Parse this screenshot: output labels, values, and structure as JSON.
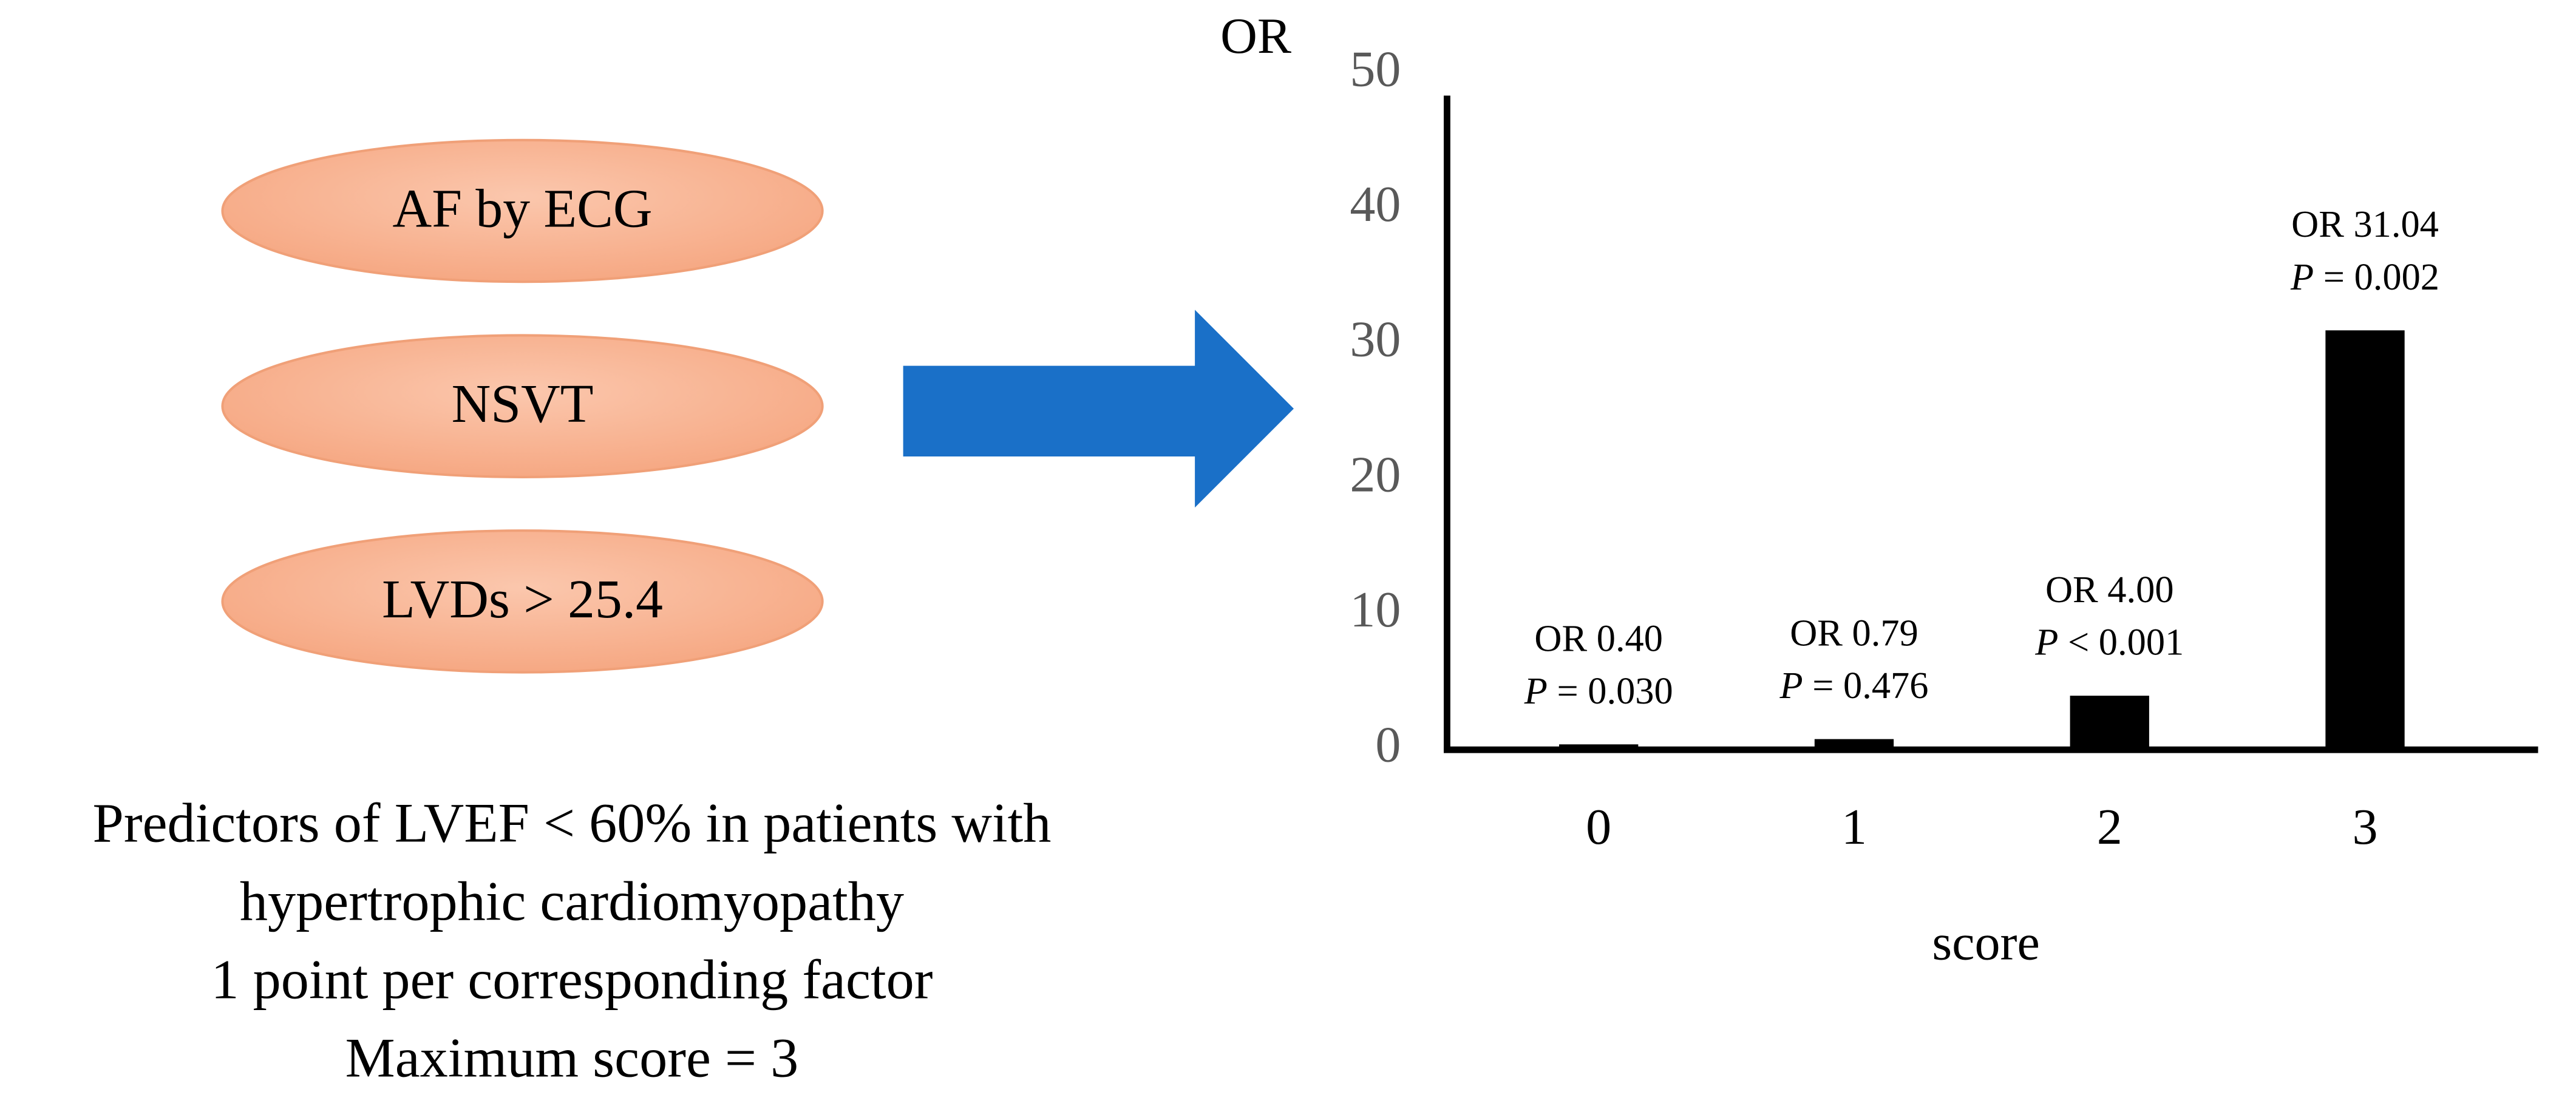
{
  "factors": [
    "AF by ECG",
    "NSVT",
    "LVDs > 25.4"
  ],
  "caption": [
    "Predictors of LVEF < 60% in patients with",
    "hypertrophic cardiomyopathy",
    "1 point per corresponding factor",
    "Maximum score = 3"
  ],
  "chart_data": {
    "type": "bar",
    "y_label": "OR",
    "x_label": "score",
    "categories": [
      "0",
      "1",
      "2",
      "3"
    ],
    "values": [
      0.4,
      0.79,
      4.0,
      31.04
    ],
    "value_labels": [
      "OR 0.40",
      "OR 0.79",
      "OR 4.00",
      "OR 31.04"
    ],
    "annotations": [
      "P = 0.030",
      "P = 0.476",
      "P < 0.001",
      "P = 0.002"
    ],
    "color": "#000000",
    "ylim": [
      0,
      50
    ],
    "yticks": [
      0,
      10,
      20,
      30,
      40,
      50
    ],
    "grid": false
  }
}
